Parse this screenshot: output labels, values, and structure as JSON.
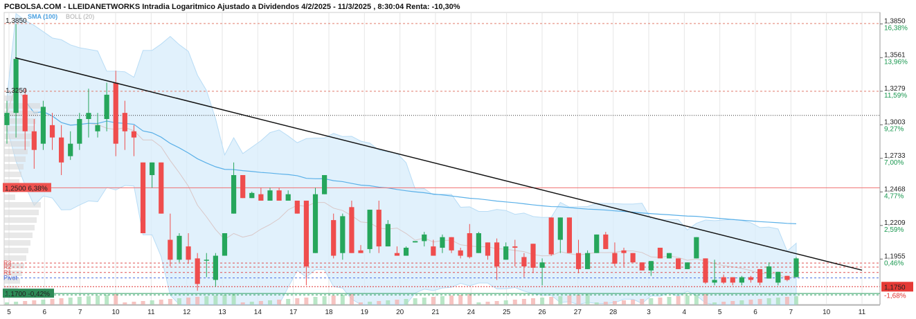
{
  "header": {
    "title": "PCBOLSA.COM - LLEIDANETWORKS Intradia Logaritmico Ajustado a Dividendos 4/2/2025 - 11/3/2025 , 8:30:04 Renta: -10,30%"
  },
  "indicators": {
    "sma_label": "SMA (100)",
    "boll_label": "BOLL (20)"
  },
  "chart_data": {
    "type": "candlestick",
    "title": "PCBOLSA.COM - LLEIDANETWORKS Intradia Logaritmico Ajustado a Dividendos 4/2/2025 - 11/3/2025 , 8:30:04 Renta: -10,30%",
    "y_scale": "log",
    "ylim": [
      1.162,
      1.395
    ],
    "y_ticks": [
      {
        "value": 1.385,
        "label": "1,3850",
        "pct": "16,38%"
      },
      {
        "value": 1.3561,
        "label": "1,3561",
        "pct": "13,96%"
      },
      {
        "value": 1.3279,
        "label": "1,3279",
        "pct": "11,59%"
      },
      {
        "value": 1.3003,
        "label": "1,3003",
        "pct": "9,27%"
      },
      {
        "value": 1.2733,
        "label": "1,2733",
        "pct": "7,00%"
      },
      {
        "value": 1.2468,
        "label": "1,2468",
        "pct": "4,77%"
      },
      {
        "value": 1.2209,
        "label": "1,2209",
        "pct": "2,59%"
      },
      {
        "value": 1.1955,
        "label": "1,1955",
        "pct": "0,46%"
      }
    ],
    "x_ticks": [
      "5",
      "6",
      "7",
      "10",
      "11",
      "12",
      "13",
      "14",
      "17",
      "18",
      "19",
      "20",
      "21",
      "24",
      "25",
      "26",
      "27",
      "28",
      "3",
      "4",
      "5",
      "6",
      "7",
      "10",
      "11"
    ],
    "current_price": {
      "value": 1.175,
      "label": "1,1750",
      "pct": "-1,68%"
    },
    "high_label": "1,3850",
    "mid_label": "1,3250",
    "level_1250": {
      "value": 1.25,
      "label": "1,2500",
      "pct": "6,38%"
    },
    "level_1170": {
      "value": 1.17,
      "label": "1,1700",
      "pct": "-0,42%"
    },
    "dotted_level": 1.308,
    "pivot_levels": [
      {
        "name": "R3",
        "value": 1.1925
      },
      {
        "name": "R2",
        "value": 1.1895
      },
      {
        "name": "R1",
        "value": 1.1855
      },
      {
        "name": "Pivot",
        "value": 1.1815
      }
    ],
    "support_levels": [
      {
        "name": "S3",
        "value": 1.169
      }
    ],
    "trendline": [
      {
        "x": 0,
        "y": 1.356
      },
      {
        "x": 36,
        "y": 1.1872
      }
    ],
    "candles": [
      {
        "o": 1.3,
        "h": 1.32,
        "l": 1.285,
        "c": 1.31
      },
      {
        "o": 1.31,
        "h": 1.385,
        "l": 1.29,
        "c": 1.355
      },
      {
        "o": 1.325,
        "h": 1.33,
        "l": 1.28,
        "c": 1.295
      },
      {
        "o": 1.295,
        "h": 1.305,
        "l": 1.265,
        "c": 1.28
      },
      {
        "o": 1.285,
        "h": 1.32,
        "l": 1.28,
        "c": 1.315
      },
      {
        "o": 1.3,
        "h": 1.31,
        "l": 1.28,
        "c": 1.29
      },
      {
        "o": 1.29,
        "h": 1.3,
        "l": 1.26,
        "c": 1.27
      },
      {
        "o": 1.275,
        "h": 1.295,
        "l": 1.272,
        "c": 1.285
      },
      {
        "o": 1.285,
        "h": 1.31,
        "l": 1.28,
        "c": 1.305
      },
      {
        "o": 1.305,
        "h": 1.33,
        "l": 1.29,
        "c": 1.31
      },
      {
        "o": 1.295,
        "h": 1.31,
        "l": 1.29,
        "c": 1.3
      },
      {
        "o": 1.305,
        "h": 1.335,
        "l": 1.295,
        "c": 1.325
      },
      {
        "o": 1.335,
        "h": 1.345,
        "l": 1.275,
        "c": 1.285
      },
      {
        "o": 1.31,
        "h": 1.32,
        "l": 1.28,
        "c": 1.295
      },
      {
        "o": 1.295,
        "h": 1.3,
        "l": 1.275,
        "c": 1.29
      },
      {
        "o": 1.27,
        "h": 1.27,
        "l": 1.215,
        "c": 1.215
      },
      {
        "o": 1.26,
        "h": 1.27,
        "l": 1.25,
        "c": 1.27
      },
      {
        "o": 1.27,
        "h": 1.27,
        "l": 1.23,
        "c": 1.23
      },
      {
        "o": 1.21,
        "h": 1.23,
        "l": 1.19,
        "c": 1.195
      },
      {
        "o": 1.195,
        "h": 1.215,
        "l": 1.193,
        "c": 1.213
      },
      {
        "o": 1.205,
        "h": 1.215,
        "l": 1.192,
        "c": 1.195
      },
      {
        "o": 1.196,
        "h": 1.2,
        "l": 1.172,
        "c": 1.177
      },
      {
        "o": 1.195,
        "h": 1.2,
        "l": 1.182,
        "c": 1.195
      },
      {
        "o": 1.18,
        "h": 1.2,
        "l": 1.175,
        "c": 1.198
      },
      {
        "o": 1.198,
        "h": 1.215,
        "l": 1.198,
        "c": 1.215
      },
      {
        "o": 1.23,
        "h": 1.27,
        "l": 1.23,
        "c": 1.26
      },
      {
        "o": 1.26,
        "h": 1.26,
        "l": 1.242,
        "c": 1.242
      },
      {
        "o": 1.242,
        "h": 1.247,
        "l": 1.242,
        "c": 1.246
      },
      {
        "o": 1.245,
        "h": 1.25,
        "l": 1.24,
        "c": 1.24
      },
      {
        "o": 1.24,
        "h": 1.25,
        "l": 1.24,
        "c": 1.248
      },
      {
        "o": 1.248,
        "h": 1.25,
        "l": 1.24,
        "c": 1.24
      },
      {
        "o": 1.24,
        "h": 1.248,
        "l": 1.24,
        "c": 1.245
      },
      {
        "o": 1.24,
        "h": 1.24,
        "l": 1.23,
        "c": 1.23
      },
      {
        "o": 1.24,
        "h": 1.24,
        "l": 1.176,
        "c": 1.19
      },
      {
        "o": 1.2,
        "h": 1.25,
        "l": 1.2,
        "c": 1.245
      },
      {
        "o": 1.245,
        "h": 1.26,
        "l": 1.245,
        "c": 1.26
      },
      {
        "o": 1.225,
        "h": 1.23,
        "l": 1.196,
        "c": 1.198
      },
      {
        "o": 1.2,
        "h": 1.23,
        "l": 1.195,
        "c": 1.228
      },
      {
        "o": 1.235,
        "h": 1.24,
        "l": 1.2,
        "c": 1.2
      },
      {
        "o": 1.202,
        "h": 1.206,
        "l": 1.2,
        "c": 1.2
      },
      {
        "o": 1.203,
        "h": 1.233,
        "l": 1.2,
        "c": 1.233
      },
      {
        "o": 1.233,
        "h": 1.24,
        "l": 1.2,
        "c": 1.205
      },
      {
        "o": 1.205,
        "h": 1.225,
        "l": 1.205,
        "c": 1.222
      },
      {
        "o": 1.2,
        "h": 1.205,
        "l": 1.198,
        "c": 1.198
      },
      {
        "o": 1.198,
        "h": 1.205,
        "l": 1.198,
        "c": 1.204
      },
      {
        "o": 1.208,
        "h": 1.209,
        "l": 1.208,
        "c": 1.209
      },
      {
        "o": 1.209,
        "h": 1.216,
        "l": 1.205,
        "c": 1.214
      },
      {
        "o": 1.205,
        "h": 1.21,
        "l": 1.198,
        "c": 1.198
      },
      {
        "o": 1.204,
        "h": 1.214,
        "l": 1.2,
        "c": 1.212
      },
      {
        "o": 1.212,
        "h": 1.212,
        "l": 1.2,
        "c": 1.202
      },
      {
        "o": 1.202,
        "h": 1.204,
        "l": 1.196,
        "c": 1.198
      },
      {
        "o": 1.215,
        "h": 1.222,
        "l": 1.196,
        "c": 1.197
      },
      {
        "o": 1.2,
        "h": 1.216,
        "l": 1.2,
        "c": 1.215
      },
      {
        "o": 1.208,
        "h": 1.208,
        "l": 1.195,
        "c": 1.198
      },
      {
        "o": 1.208,
        "h": 1.211,
        "l": 1.18,
        "c": 1.19
      },
      {
        "o": 1.195,
        "h": 1.208,
        "l": 1.195,
        "c": 1.205
      },
      {
        "o": 1.205,
        "h": 1.21,
        "l": 1.19,
        "c": 1.204
      },
      {
        "o": 1.197,
        "h": 1.2,
        "l": 1.182,
        "c": 1.19
      },
      {
        "o": 1.207,
        "h": 1.207,
        "l": 1.185,
        "c": 1.189
      },
      {
        "o": 1.189,
        "h": 1.196,
        "l": 1.176,
        "c": 1.193
      },
      {
        "o": 1.227,
        "h": 1.227,
        "l": 1.198,
        "c": 1.199
      },
      {
        "o": 1.21,
        "h": 1.227,
        "l": 1.2,
        "c": 1.227
      },
      {
        "o": 1.227,
        "h": 1.227,
        "l": 1.2,
        "c": 1.2
      },
      {
        "o": 1.2,
        "h": 1.21,
        "l": 1.185,
        "c": 1.188
      },
      {
        "o": 1.188,
        "h": 1.202,
        "l": 1.188,
        "c": 1.2
      },
      {
        "o": 1.2,
        "h": 1.214,
        "l": 1.2,
        "c": 1.214
      },
      {
        "o": 1.214,
        "h": 1.216,
        "l": 1.203,
        "c": 1.203
      },
      {
        "o": 1.2,
        "h": 1.208,
        "l": 1.19,
        "c": 1.192
      },
      {
        "o": 1.202,
        "h": 1.204,
        "l": 1.19,
        "c": 1.2
      },
      {
        "o": 1.2,
        "h": 1.2,
        "l": 1.193,
        "c": 1.193
      },
      {
        "o": 1.193,
        "h": 1.193,
        "l": 1.187,
        "c": 1.187
      },
      {
        "o": 1.187,
        "h": 1.194,
        "l": 1.183,
        "c": 1.194
      },
      {
        "o": 1.204,
        "h": 1.204,
        "l": 1.196,
        "c": 1.196
      },
      {
        "o": 1.196,
        "h": 1.2,
        "l": 1.196,
        "c": 1.2
      },
      {
        "o": 1.196,
        "h": 1.196,
        "l": 1.188,
        "c": 1.188
      },
      {
        "o": 1.188,
        "h": 1.193,
        "l": 1.188,
        "c": 1.193
      },
      {
        "o": 1.196,
        "h": 1.212,
        "l": 1.196,
        "c": 1.212
      },
      {
        "o": 1.196,
        "h": 1.196,
        "l": 1.177,
        "c": 1.178
      },
      {
        "o": 1.178,
        "h": 1.195,
        "l": 1.176,
        "c": 1.18
      },
      {
        "o": 1.182,
        "h": 1.184,
        "l": 1.177,
        "c": 1.178
      },
      {
        "o": 1.182,
        "h": 1.182,
        "l": 1.176,
        "c": 1.178
      },
      {
        "o": 1.178,
        "h": 1.183,
        "l": 1.176,
        "c": 1.182
      },
      {
        "o": 1.182,
        "h": 1.183,
        "l": 1.178,
        "c": 1.18
      },
      {
        "o": 1.188,
        "h": 1.188,
        "l": 1.176,
        "c": 1.178
      },
      {
        "o": 1.181,
        "h": 1.193,
        "l": 1.181,
        "c": 1.19
      },
      {
        "o": 1.178,
        "h": 1.186,
        "l": 1.176,
        "c": 1.186
      },
      {
        "o": 1.183,
        "h": 1.183,
        "l": 1.179,
        "c": 1.18
      },
      {
        "o": 1.182,
        "h": 1.197,
        "l": 1.182,
        "c": 1.196
      }
    ]
  }
}
